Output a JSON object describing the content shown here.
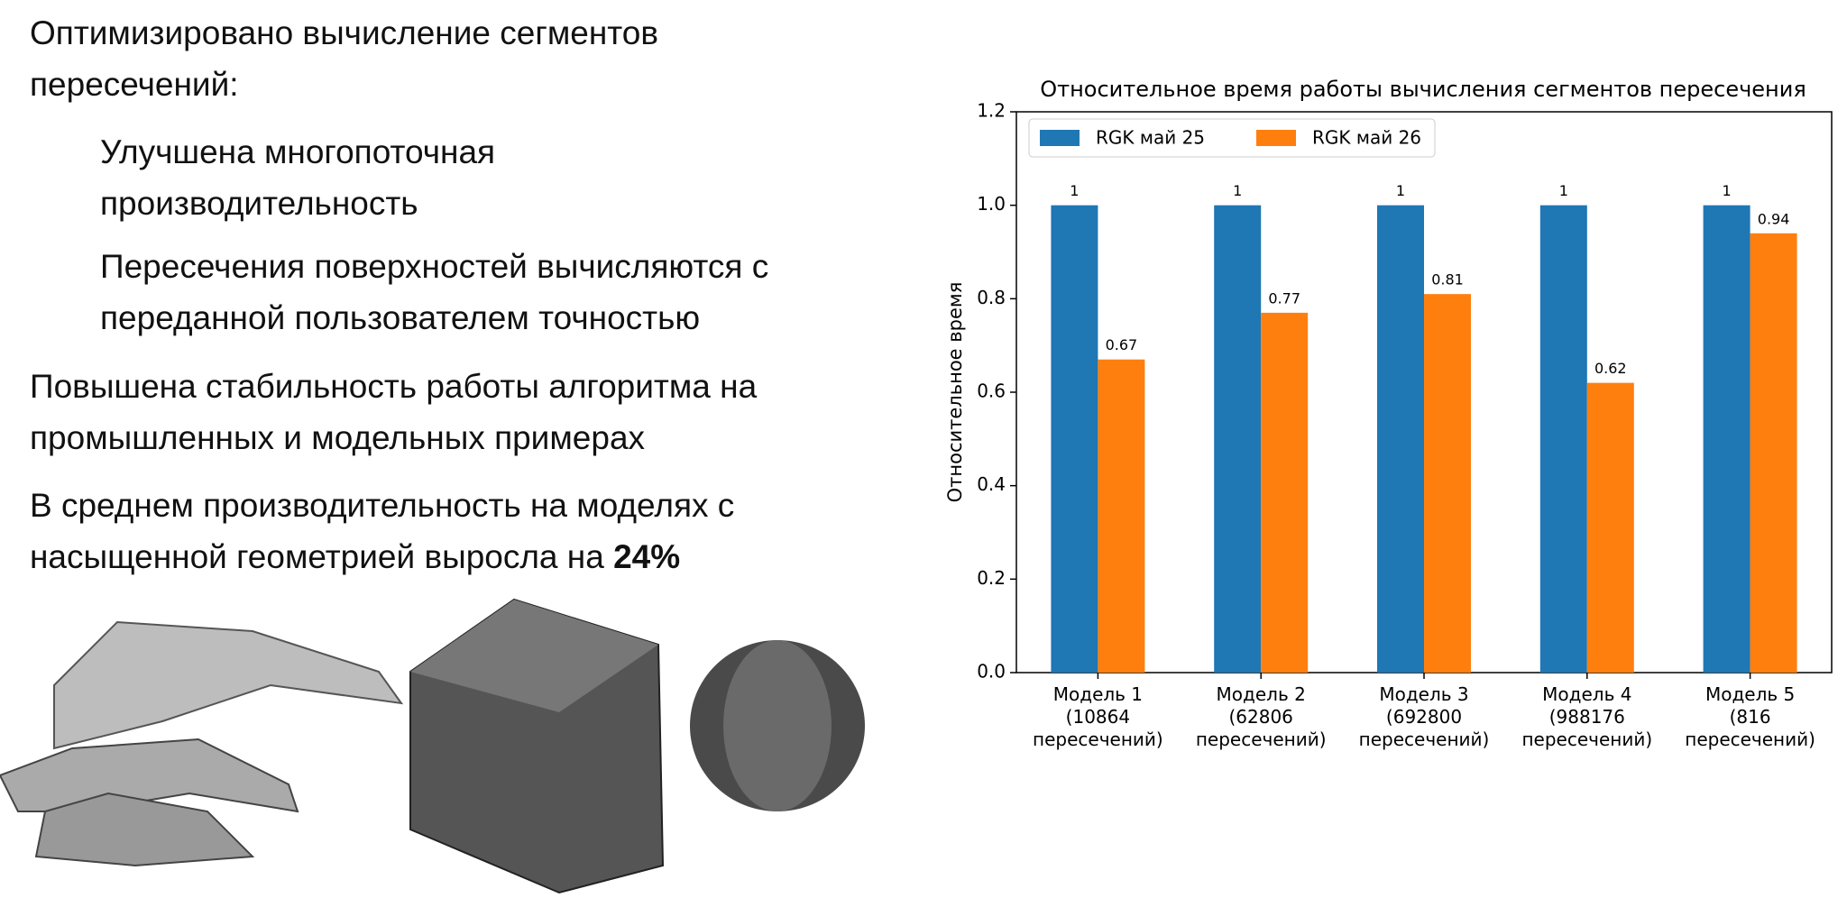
{
  "slide": {
    "paragraphs": [
      "Оптимизировано вычисление сегментов пересечений:",
      "Улучшена многопоточная производительность",
      "Пересечения поверхностей вычисляются с переданной пользователем  точностью",
      "Повышена стабильность работы алгоритма на промышленных и модельных примерах"
    ],
    "summary": {
      "text": "В среднем производительность на моделях с насыщенной геометрией выросла на ",
      "bold": "24%"
    }
  },
  "chart_data": {
    "type": "bar",
    "title": "Относительное время работы вычисления сегментов пересечения",
    "y_label": "Относительное время",
    "categories": [
      "Модель 1\n(10864\nпересечений)",
      "Модель 2\n(62806\nпересечений)",
      "Модель 3\n(692800\nпересечений)",
      "Модель 4\n(988176\nпересечений)",
      "Модель 5\n(816\nпересечений)"
    ],
    "series": [
      {
        "name": "RGK май 25",
        "color": "#1f77b4",
        "values": [
          1,
          1,
          1,
          1,
          1
        ]
      },
      {
        "name": "RGK май 26",
        "color": "#ff7f0e",
        "values": [
          0.67,
          0.77,
          0.81,
          0.62,
          0.94
        ]
      }
    ],
    "ylim": [
      0,
      1.2
    ],
    "yticks": [
      {
        "value": 0,
        "label": "0.0"
      },
      0.2,
      0.4,
      0.6,
      0.8,
      {
        "value": 1,
        "label": "1.0"
      },
      1.2
    ],
    "legend": "upper left"
  }
}
